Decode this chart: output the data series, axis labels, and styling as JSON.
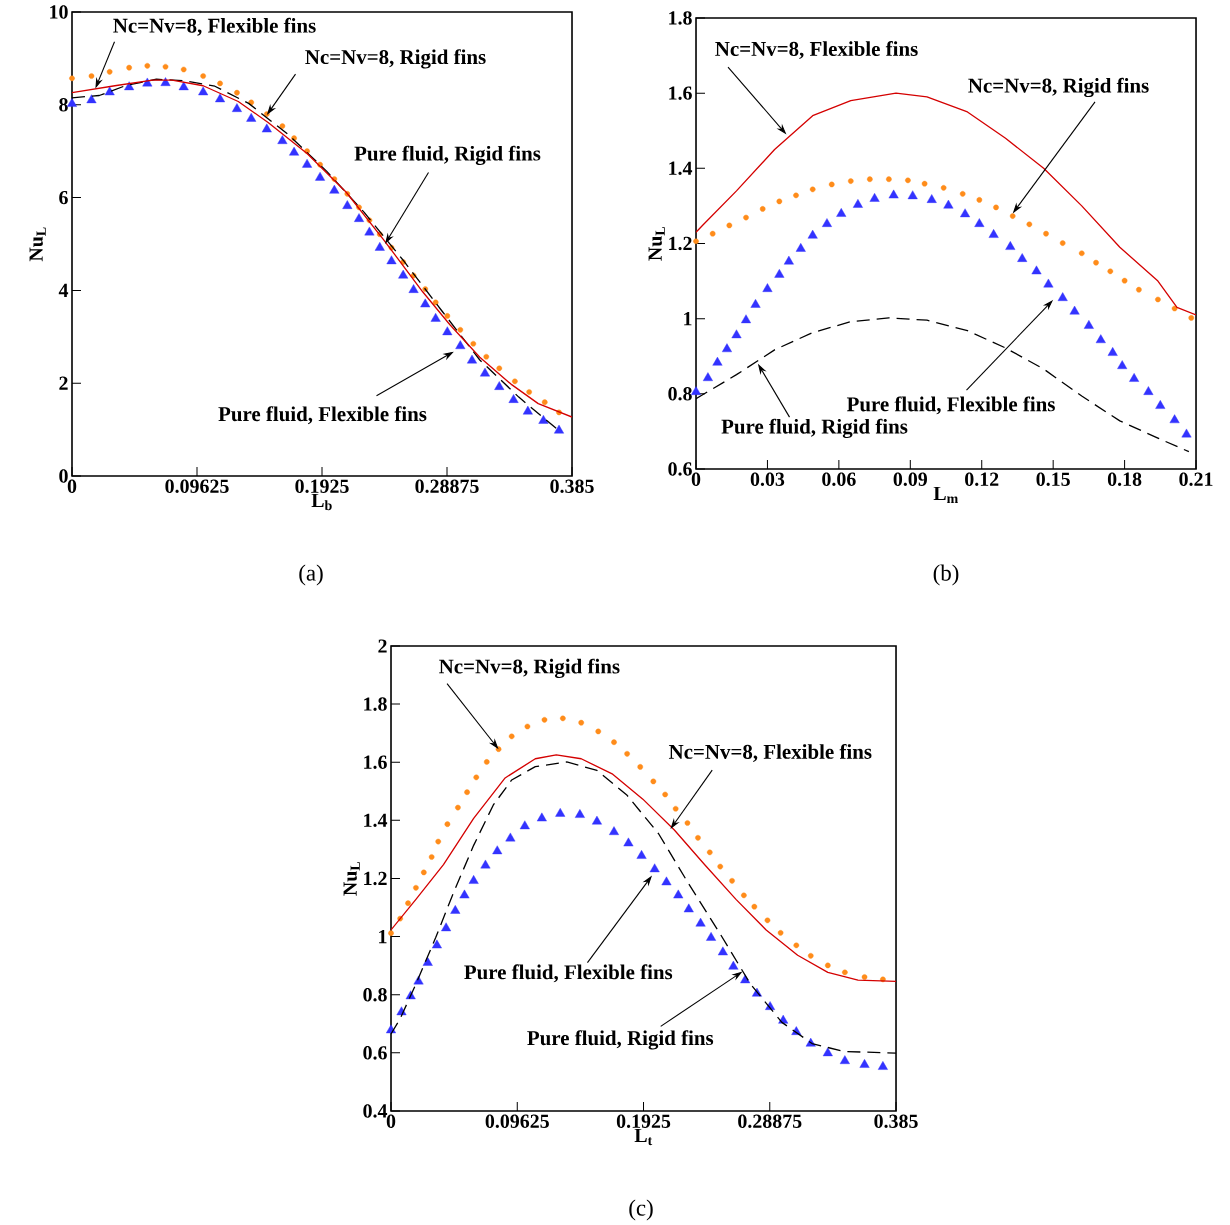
{
  "chart_data": [
    {
      "type": "line",
      "title": "(a)",
      "xlabel": "L$_{b}$",
      "ylabel": "Nu$_{L}$",
      "xlim": [
        0,
        0.385
      ],
      "ylim": [
        0,
        10
      ],
      "xticks": [
        0,
        0.09625,
        0.1925,
        0.28875,
        0.385
      ],
      "yticks": [
        0,
        2,
        4,
        6,
        8,
        10
      ],
      "annotations": [
        {
          "text": "Nc=Nv=8, Flexible fins",
          "x": 0.018,
          "y": 8.35
        },
        {
          "text": "Nc=Nv=8, Rigid fins",
          "x": 0.15,
          "y": 7.78
        },
        {
          "text": "Pure fluid, Flexible fins",
          "x": 0.294,
          "y": 2.68
        },
        {
          "text": "Pure fluid, Rigid fins",
          "x": 0.241,
          "y": 5.0
        }
      ],
      "series": [
        {
          "type": "line",
          "line_style": "solid",
          "color": "#d40000",
          "x": [
            0,
            0.033,
            0.062,
            0.077,
            0.101,
            0.128,
            0.151,
            0.181,
            0.211,
            0.24,
            0.27,
            0.291,
            0.314,
            0.338,
            0.359,
            0.385
          ],
          "values": [
            8.26,
            8.41,
            8.53,
            8.53,
            8.41,
            8.07,
            7.62,
            6.95,
            6.12,
            5.09,
            3.97,
            3.26,
            2.56,
            1.98,
            1.56,
            1.27
          ]
        },
        {
          "type": "scatter",
          "marker": "circle",
          "color": "#ff8c1a",
          "x": [
            0,
            0.015,
            0.029,
            0.044,
            0.058,
            0.072,
            0.086,
            0.101,
            0.114,
            0.127,
            0.138,
            0.15,
            0.162,
            0.171,
            0.181,
            0.191,
            0.202,
            0.212,
            0.221,
            0.229,
            0.237,
            0.246,
            0.255,
            0.263,
            0.272,
            0.28,
            0.289,
            0.299,
            0.309,
            0.319,
            0.329,
            0.341,
            0.352,
            0.364,
            0.375
          ],
          "values": [
            8.57,
            8.62,
            8.71,
            8.8,
            8.84,
            8.82,
            8.76,
            8.62,
            8.46,
            8.26,
            8.05,
            7.8,
            7.54,
            7.28,
            7.0,
            6.71,
            6.4,
            6.08,
            5.79,
            5.51,
            5.21,
            4.92,
            4.61,
            4.32,
            4.03,
            3.74,
            3.45,
            3.15,
            2.85,
            2.57,
            2.32,
            2.04,
            1.81,
            1.59,
            1.37
          ]
        },
        {
          "type": "scatter",
          "marker": "triangle",
          "color": "#3333ff",
          "x": [
            0,
            0.015,
            0.029,
            0.044,
            0.058,
            0.072,
            0.086,
            0.101,
            0.114,
            0.127,
            0.138,
            0.15,
            0.162,
            0.171,
            0.181,
            0.191,
            0.202,
            0.212,
            0.221,
            0.229,
            0.237,
            0.246,
            0.255,
            0.263,
            0.272,
            0.28,
            0.289,
            0.299,
            0.308,
            0.318,
            0.329,
            0.34,
            0.351,
            0.363,
            0.375
          ],
          "values": [
            8.02,
            8.1,
            8.27,
            8.38,
            8.46,
            8.47,
            8.38,
            8.27,
            8.12,
            7.91,
            7.7,
            7.47,
            7.22,
            6.97,
            6.71,
            6.43,
            6.15,
            5.82,
            5.54,
            5.25,
            4.92,
            4.63,
            4.32,
            4.01,
            3.7,
            3.39,
            3.1,
            2.8,
            2.49,
            2.21,
            1.92,
            1.64,
            1.39,
            1.19,
            0.98
          ]
        },
        {
          "type": "line",
          "line_style": "dashed",
          "color": "#000000",
          "x": [
            0,
            0.021,
            0.042,
            0.065,
            0.086,
            0.11,
            0.136,
            0.166,
            0.196,
            0.225,
            0.255,
            0.285,
            0.314,
            0.344,
            0.374
          ],
          "values": [
            8.15,
            8.2,
            8.42,
            8.55,
            8.52,
            8.4,
            8.03,
            7.37,
            6.57,
            5.68,
            4.65,
            3.55,
            2.5,
            1.7,
            1.0
          ]
        }
      ]
    },
    {
      "type": "line",
      "title": "(b)",
      "xlabel": "L$_{m}$",
      "ylabel": "Nu$_{L}$",
      "xlim": [
        0,
        0.21
      ],
      "ylim": [
        0.6,
        1.8
      ],
      "xticks": [
        0,
        0.03,
        0.06,
        0.09,
        0.12,
        0.15,
        0.18,
        0.21
      ],
      "yticks": [
        0.6,
        0.8,
        1,
        1.2,
        1.4,
        1.6,
        1.8
      ],
      "annotations": [
        {
          "text": "Nc=Nv=8, Flexible fins",
          "x": 0.038,
          "y": 1.49
        },
        {
          "text": "Nc=Nv=8, Rigid fins",
          "x": 0.133,
          "y": 1.28
        },
        {
          "text": "Pure fluid, Flexible fins",
          "x": 0.15,
          "y": 1.05
        },
        {
          "text": "Pure fluid, Rigid fins",
          "x": 0.026,
          "y": 0.88
        }
      ],
      "series": [
        {
          "type": "line",
          "line_style": "solid",
          "color": "#d40000",
          "x": [
            0,
            0.003,
            0.017,
            0.033,
            0.049,
            0.065,
            0.084,
            0.097,
            0.114,
            0.13,
            0.146,
            0.162,
            0.178,
            0.194,
            0.202,
            0.21
          ],
          "values": [
            1.23,
            1.25,
            1.34,
            1.45,
            1.54,
            1.58,
            1.6,
            1.59,
            1.55,
            1.48,
            1.4,
            1.3,
            1.19,
            1.1,
            1.03,
            1.01
          ]
        },
        {
          "type": "scatter",
          "marker": "circle",
          "color": "#ff8c1a",
          "x": [
            0,
            0.007,
            0.014,
            0.021,
            0.028,
            0.035,
            0.042,
            0.049,
            0.057,
            0.065,
            0.073,
            0.081,
            0.089,
            0.096,
            0.104,
            0.112,
            0.119,
            0.126,
            0.133,
            0.14,
            0.147,
            0.154,
            0.162,
            0.168,
            0.174,
            0.18,
            0.186,
            0.194,
            0.201,
            0.208
          ],
          "values": [
            1.206,
            1.226,
            1.248,
            1.269,
            1.292,
            1.312,
            1.328,
            1.344,
            1.357,
            1.366,
            1.371,
            1.371,
            1.368,
            1.359,
            1.348,
            1.332,
            1.316,
            1.296,
            1.273,
            1.251,
            1.226,
            1.201,
            1.174,
            1.149,
            1.126,
            1.101,
            1.077,
            1.051,
            1.027,
            1.002
          ]
        },
        {
          "type": "scatter",
          "marker": "triangle",
          "color": "#3333ff",
          "x": [
            0,
            0.005,
            0.009,
            0.013,
            0.017,
            0.021,
            0.025,
            0.03,
            0.035,
            0.039,
            0.044,
            0.049,
            0.055,
            0.061,
            0.068,
            0.075,
            0.083,
            0.091,
            0.099,
            0.106,
            0.113,
            0.119,
            0.125,
            0.132,
            0.137,
            0.143,
            0.148,
            0.154,
            0.159,
            0.165,
            0.17,
            0.175,
            0.179,
            0.184,
            0.19,
            0.195,
            0.201,
            0.206
          ],
          "values": [
            0.805,
            0.842,
            0.883,
            0.919,
            0.956,
            0.996,
            1.037,
            1.079,
            1.117,
            1.152,
            1.186,
            1.221,
            1.252,
            1.279,
            1.303,
            1.319,
            1.328,
            1.326,
            1.316,
            1.301,
            1.278,
            1.252,
            1.223,
            1.191,
            1.159,
            1.126,
            1.091,
            1.055,
            1.019,
            0.981,
            0.943,
            0.909,
            0.874,
            0.84,
            0.805,
            0.768,
            0.73,
            0.692
          ]
        },
        {
          "type": "line",
          "line_style": "dashed",
          "color": "#000000",
          "x": [
            0,
            0.017,
            0.033,
            0.049,
            0.065,
            0.081,
            0.097,
            0.114,
            0.13,
            0.146,
            0.162,
            0.178,
            0.194,
            0.207
          ],
          "values": [
            0.787,
            0.851,
            0.917,
            0.963,
            0.992,
            1.002,
            0.996,
            0.968,
            0.922,
            0.866,
            0.794,
            0.728,
            0.682,
            0.646
          ]
        }
      ]
    },
    {
      "type": "line",
      "title": "(c)",
      "xlabel": "L$_{t}$",
      "ylabel": "Nu$_{L}$",
      "xlim": [
        0,
        0.385
      ],
      "ylim": [
        0.4,
        2
      ],
      "xticks": [
        0,
        0.09625,
        0.1925,
        0.28875,
        0.385
      ],
      "yticks": [
        0.4,
        0.6,
        0.8,
        1,
        1.2,
        1.4,
        1.6,
        1.8,
        2
      ],
      "annotations": [
        {
          "text": "Nc=Nv=8, Flexible fins",
          "x": 0.213,
          "y": 1.37
        },
        {
          "text": "Nc=Nv=8, Rigid fins",
          "x": 0.082,
          "y": 1.645
        },
        {
          "text": "Pure fluid, Flexible fins",
          "x": 0.199,
          "y": 1.21
        },
        {
          "text": "Pure fluid, Rigid fins",
          "x": 0.268,
          "y": 0.88
        }
      ],
      "series": [
        {
          "type": "line",
          "line_style": "solid",
          "color": "#d40000",
          "x": [
            0,
            0.019,
            0.04,
            0.063,
            0.087,
            0.11,
            0.126,
            0.145,
            0.169,
            0.192,
            0.216,
            0.239,
            0.263,
            0.286,
            0.31,
            0.333,
            0.356,
            0.385
          ],
          "values": [
            1.023,
            1.128,
            1.248,
            1.407,
            1.546,
            1.612,
            1.625,
            1.612,
            1.559,
            1.473,
            1.367,
            1.248,
            1.128,
            1.023,
            0.936,
            0.877,
            0.85,
            0.846
          ]
        },
        {
          "type": "scatter",
          "marker": "circle",
          "color": "#ff8c1a",
          "x": [
            0,
            0.007,
            0.013,
            0.019,
            0.025,
            0.031,
            0.036,
            0.043,
            0.051,
            0.058,
            0.065,
            0.073,
            0.082,
            0.092,
            0.104,
            0.117,
            0.131,
            0.145,
            0.158,
            0.17,
            0.18,
            0.19,
            0.2,
            0.209,
            0.217,
            0.226,
            0.234,
            0.243,
            0.251,
            0.26,
            0.269,
            0.277,
            0.287,
            0.297,
            0.309,
            0.32,
            0.333,
            0.346,
            0.361,
            0.375
          ],
          "values": [
            1.012,
            1.062,
            1.115,
            1.168,
            1.221,
            1.274,
            1.327,
            1.387,
            1.444,
            1.497,
            1.548,
            1.601,
            1.645,
            1.689,
            1.723,
            1.746,
            1.751,
            1.736,
            1.706,
            1.669,
            1.629,
            1.584,
            1.534,
            1.489,
            1.44,
            1.391,
            1.34,
            1.29,
            1.241,
            1.192,
            1.142,
            1.103,
            1.056,
            1.013,
            0.97,
            0.934,
            0.901,
            0.877,
            0.861,
            0.853
          ]
        },
        {
          "type": "scatter",
          "marker": "triangle",
          "color": "#3333ff",
          "x": [
            0,
            0.008,
            0.015,
            0.021,
            0.028,
            0.035,
            0.042,
            0.049,
            0.056,
            0.063,
            0.072,
            0.081,
            0.091,
            0.102,
            0.115,
            0.129,
            0.144,
            0.157,
            0.17,
            0.181,
            0.191,
            0.201,
            0.21,
            0.219,
            0.227,
            0.236,
            0.244,
            0.253,
            0.261,
            0.27,
            0.279,
            0.289,
            0.299,
            0.309,
            0.32,
            0.333,
            0.346,
            0.361,
            0.375
          ],
          "values": [
            0.678,
            0.74,
            0.795,
            0.846,
            0.91,
            0.97,
            1.029,
            1.089,
            1.142,
            1.192,
            1.245,
            1.294,
            1.338,
            1.38,
            1.407,
            1.423,
            1.419,
            1.396,
            1.36,
            1.321,
            1.278,
            1.232,
            1.187,
            1.142,
            1.094,
            1.045,
            0.996,
            0.946,
            0.897,
            0.85,
            0.804,
            0.758,
            0.711,
            0.672,
            0.632,
            0.599,
            0.572,
            0.559,
            0.552
          ]
        },
        {
          "type": "line",
          "line_style": "dashed",
          "color": "#000000",
          "x": [
            0,
            0.007,
            0.019,
            0.034,
            0.048,
            0.063,
            0.078,
            0.092,
            0.11,
            0.134,
            0.157,
            0.18,
            0.204,
            0.227,
            0.251,
            0.274,
            0.298,
            0.321,
            0.345,
            0.385
          ],
          "values": [
            0.665,
            0.718,
            0.837,
            0.996,
            1.155,
            1.314,
            1.453,
            1.539,
            1.585,
            1.601,
            1.572,
            1.486,
            1.354,
            1.181,
            1.009,
            0.837,
            0.705,
            0.632,
            0.605,
            0.599
          ]
        }
      ]
    }
  ]
}
